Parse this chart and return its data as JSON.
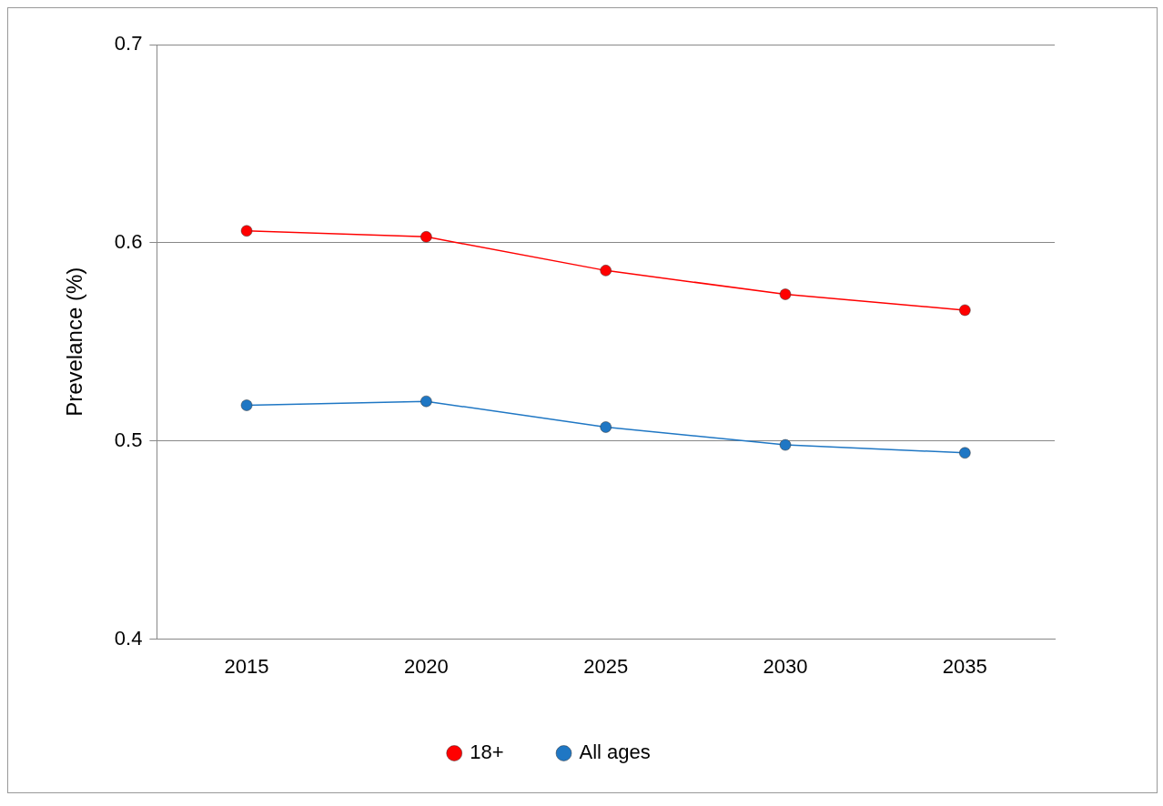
{
  "chart_data": {
    "type": "line",
    "ylabel": "Prevelance (%)",
    "categories": [
      "2015",
      "2020",
      "2025",
      "2030",
      "2035"
    ],
    "series": [
      {
        "name": "18+",
        "color": "#ff0000",
        "values": [
          0.606,
          0.603,
          0.586,
          0.574,
          0.566
        ]
      },
      {
        "name": "All ages",
        "color": "#1f77c4",
        "values": [
          0.518,
          0.52,
          0.507,
          0.498,
          0.494
        ]
      }
    ],
    "ylim": [
      0.4,
      0.7
    ],
    "yticks": [
      0.4,
      0.5,
      0.6,
      0.7
    ],
    "grid": "y",
    "legend": "bottom",
    "marker": "circle",
    "line_style": "solid"
  }
}
